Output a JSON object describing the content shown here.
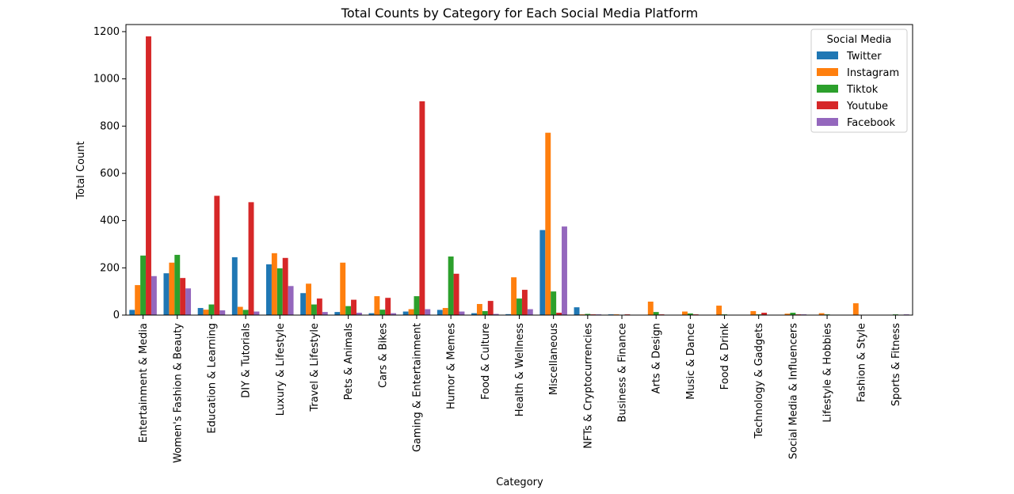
{
  "chart_data": {
    "type": "bar",
    "title": "Total Counts by Category for Each Social Media Platform",
    "xlabel": "Category",
    "ylabel": "Total Count",
    "ylim": [
      0,
      1230
    ],
    "yticks": [
      0,
      200,
      400,
      600,
      800,
      1000,
      1200
    ],
    "grid": false,
    "legend": {
      "title": "Social Media",
      "position": "top-right"
    },
    "categories": [
      "Entertainment & Media",
      "Women's Fashion & Beauty",
      "Education & Learning",
      "DIY & Tutorials",
      "Luxury & Lifestyle",
      "Travel & Lifestyle",
      "Pets & Animals",
      "Cars & Bikes",
      "Gaming & Entertainment",
      "Humor & Memes",
      "Food & Culture",
      "Health & Wellness",
      "Miscellaneous",
      "NFTs & Cryptocurrencies",
      "Business & Finance",
      "Arts & Design",
      "Music & Dance",
      "Food & Drink",
      "Technology & Gadgets",
      "Social Media & Influencers",
      "Lifestyle & Hobbies",
      "Fashion & Style",
      "Sports & Fitness"
    ],
    "series": [
      {
        "name": "Twitter",
        "color": "#1f77b4",
        "values": [
          22,
          177,
          30,
          245,
          215,
          93,
          13,
          8,
          15,
          22,
          8,
          4,
          360,
          33,
          3,
          0,
          0,
          0,
          0,
          0,
          0,
          0,
          0
        ]
      },
      {
        "name": "Instagram",
        "color": "#ff7f0e",
        "values": [
          127,
          222,
          23,
          35,
          262,
          133,
          222,
          80,
          25,
          30,
          47,
          160,
          772,
          3,
          3,
          57,
          15,
          40,
          17,
          6,
          8,
          50,
          0
        ]
      },
      {
        "name": "Tiktok",
        "color": "#2ca02c",
        "values": [
          252,
          255,
          45,
          22,
          198,
          45,
          38,
          23,
          80,
          248,
          17,
          70,
          100,
          5,
          0,
          13,
          7,
          3,
          3,
          10,
          3,
          0,
          3
        ]
      },
      {
        "name": "Youtube",
        "color": "#d62728",
        "values": [
          1180,
          157,
          505,
          478,
          242,
          70,
          65,
          73,
          905,
          175,
          60,
          107,
          10,
          3,
          3,
          3,
          3,
          0,
          10,
          3,
          0,
          0,
          0
        ]
      },
      {
        "name": "Facebook",
        "color": "#9467bd",
        "values": [
          165,
          113,
          20,
          15,
          123,
          13,
          10,
          8,
          25,
          15,
          5,
          25,
          375,
          3,
          0,
          0,
          0,
          0,
          0,
          3,
          0,
          0,
          3
        ]
      }
    ]
  }
}
